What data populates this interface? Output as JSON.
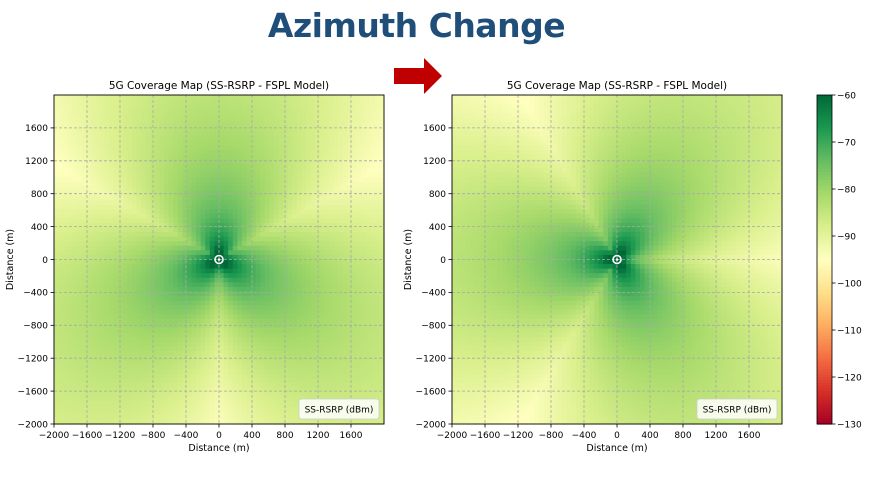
{
  "headline": "Azimuth Change",
  "arrow_color": "#c00000",
  "colorbar": {
    "ticks": [
      -60,
      -70,
      -80,
      -90,
      -100,
      -110,
      -120,
      -130
    ],
    "range": [
      -130,
      -60
    ],
    "colormap": "RdYlGn"
  },
  "chart_data": [
    {
      "type": "heatmap",
      "title": "5G Coverage Map (SS-RSRP - FSPL Model)",
      "xlabel": "Distance (m)",
      "ylabel": "Distance (m)",
      "xlim": [
        -2000,
        2000
      ],
      "ylim": [
        -2000,
        2000
      ],
      "xticks": [
        -2000,
        -1600,
        -1200,
        -800,
        -400,
        0,
        400,
        800,
        1200,
        1600
      ],
      "yticks": [
        -2000,
        -1600,
        -1200,
        -800,
        -400,
        0,
        400,
        800,
        1200,
        1600
      ],
      "grid": true,
      "legend_label": "SS-RSRP (dBm)",
      "legend_position": "lower-right",
      "value_unit": "dBm",
      "value_range": [
        -130,
        -60
      ],
      "sector_azimuths_deg": [
        0,
        120,
        240
      ],
      "site": [
        0,
        0
      ]
    },
    {
      "type": "heatmap",
      "title": "5G Coverage Map (SS-RSRP - FSPL Model)",
      "xlabel": "Distance (m)",
      "ylabel": "Distance (m)",
      "xlim": [
        -2000,
        2000
      ],
      "ylim": [
        -2000,
        2000
      ],
      "xticks": [
        -2000,
        -1600,
        -1200,
        -800,
        -400,
        0,
        400,
        800,
        1200,
        1600
      ],
      "yticks": [
        -2000,
        -1600,
        -1200,
        -800,
        -400,
        0,
        400,
        800,
        1200,
        1600
      ],
      "grid": true,
      "legend_label": "SS-RSRP (dBm)",
      "legend_position": "lower-right",
      "value_unit": "dBm",
      "value_range": [
        -130,
        -60
      ],
      "sector_azimuths_deg": [
        30,
        150,
        270
      ],
      "site": [
        0,
        0
      ]
    }
  ]
}
